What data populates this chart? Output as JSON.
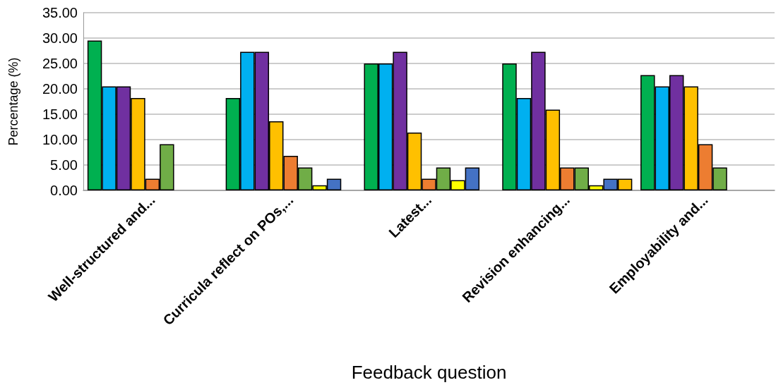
{
  "chart_data": {
    "type": "bar",
    "xlabel": "Feedback question",
    "ylabel": "Percentage (%)",
    "categories": [
      "Well-structured and...",
      "Curricula reflect on POs,...",
      "Latest...",
      "Revision enhancing...",
      "Employability and..."
    ],
    "series": [
      {
        "color": "#00b050",
        "values": [
          29.5,
          18.2,
          25.0,
          25.0,
          22.7
        ]
      },
      {
        "color": "#00b0f0",
        "values": [
          20.5,
          27.3,
          25.0,
          18.2,
          20.5
        ]
      },
      {
        "color": "#7030a0",
        "values": [
          20.5,
          27.3,
          27.3,
          27.3,
          22.7
        ]
      },
      {
        "color": "#ffc000",
        "values": [
          18.2,
          13.6,
          11.4,
          15.9,
          20.5
        ]
      },
      {
        "color": "#ed7d31",
        "values": [
          2.3,
          6.8,
          2.3,
          4.5,
          9.1
        ]
      },
      {
        "color": "#70ad47",
        "values": [
          9.1,
          4.5,
          4.5,
          4.5,
          4.5
        ]
      },
      {
        "color": "#ffff00",
        "values": [
          null,
          1.0,
          2.0,
          1.0,
          null
        ]
      },
      {
        "color": "#4472c4",
        "values": [
          null,
          2.3,
          4.5,
          2.3,
          null
        ]
      },
      {
        "color": "#ffc000",
        "values": [
          null,
          null,
          null,
          2.3,
          null
        ]
      }
    ],
    "ylim": [
      0,
      35
    ],
    "yticks": [
      {
        "value": 0,
        "label": "0.00"
      },
      {
        "value": 5,
        "label": "5.00"
      },
      {
        "value": 10,
        "label": "10.00"
      },
      {
        "value": 15,
        "label": "15.00"
      },
      {
        "value": 20,
        "label": "20.00"
      },
      {
        "value": 25,
        "label": "25.00"
      },
      {
        "value": 30,
        "label": "30.00"
      },
      {
        "value": 35,
        "label": "35.00"
      }
    ],
    "grid": "y"
  }
}
